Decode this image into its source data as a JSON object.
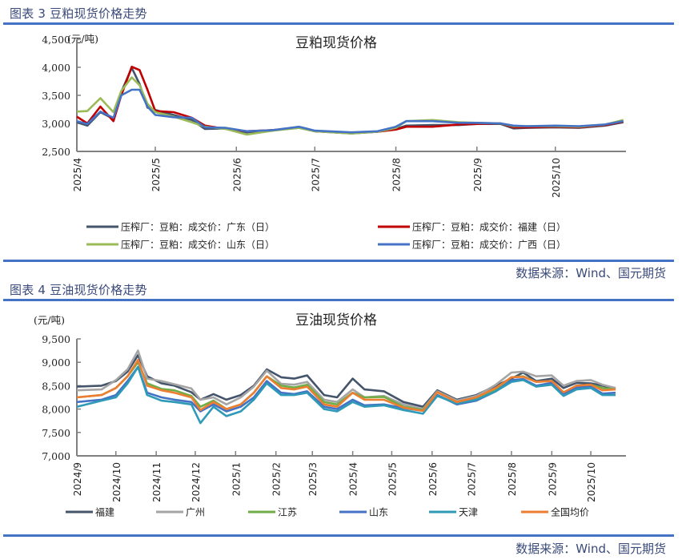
{
  "figure3": {
    "caption": "图表 3 豆粕现货价格走势",
    "source": "数据来源：Wind、国元期货"
  },
  "figure4": {
    "caption": "图表 4 豆油现货价格走势",
    "source": "数据来源：Wind、国元期货"
  },
  "chart_data": [
    {
      "type": "line",
      "title": "豆粕现货价格",
      "ylabel": "(元/吨)",
      "xlabel": "",
      "ylim": [
        2500,
        4500
      ],
      "yticks": [
        "2,500",
        "3,000",
        "3,500",
        "4,000",
        "4,500"
      ],
      "x_tick_labels": [
        "2025/4",
        "2025/5",
        "2025/6",
        "2025/7",
        "2025/8",
        "2025/9",
        "2025/10"
      ],
      "grid": false,
      "legend_position": "bottom",
      "x": [
        "2025-04-01",
        "2025-04-05",
        "2025-04-10",
        "2025-04-15",
        "2025-04-18",
        "2025-04-22",
        "2025-04-25",
        "2025-04-28",
        "2025-05-01",
        "2025-05-08",
        "2025-05-15",
        "2025-05-20",
        "2025-05-28",
        "2025-06-05",
        "2025-06-15",
        "2025-06-25",
        "2025-07-01",
        "2025-07-15",
        "2025-07-25",
        "2025-08-01",
        "2025-08-05",
        "2025-08-15",
        "2025-08-25",
        "2025-09-01",
        "2025-09-10",
        "2025-09-15",
        "2025-09-20",
        "2025-10-01",
        "2025-10-10",
        "2025-10-20",
        "2025-10-27"
      ],
      "series": [
        {
          "name": "压榨厂：豆粕：成交价：广东（日）",
          "color": "#44546a",
          "values": [
            3020,
            2960,
            3200,
            3080,
            3560,
            3990,
            3700,
            3280,
            3240,
            3150,
            3060,
            2900,
            2910,
            2840,
            2880,
            2920,
            2860,
            2820,
            2850,
            2900,
            2960,
            2970,
            2970,
            2990,
            2990,
            2910,
            2920,
            2930,
            2920,
            2960,
            3020
          ]
        },
        {
          "name": "压榨厂：豆粕：成交价：福建（日）",
          "color": "#c00000",
          "values": [
            3120,
            3000,
            3300,
            3040,
            3500,
            4010,
            3950,
            3600,
            3220,
            3200,
            3100,
            2960,
            2900,
            2860,
            2880,
            2930,
            2860,
            2830,
            2850,
            2890,
            2940,
            2940,
            2980,
            2990,
            3000,
            2930,
            2930,
            2940,
            2930,
            2970,
            3030
          ]
        },
        {
          "name": "压榨厂：豆粕：成交价：山东（日）",
          "color": "#9bbb59",
          "values": [
            3210,
            3220,
            3450,
            3200,
            3580,
            3820,
            3680,
            3350,
            3200,
            3120,
            3020,
            2940,
            2900,
            2800,
            2870,
            2920,
            2860,
            2820,
            2850,
            2920,
            3040,
            3060,
            3020,
            3010,
            3000,
            2950,
            2950,
            2950,
            2940,
            2980,
            3060
          ]
        },
        {
          "name": "压榨厂：豆粕：成交价：广西（日）",
          "color": "#4472c4",
          "values": [
            3040,
            2990,
            3210,
            3100,
            3500,
            3600,
            3600,
            3300,
            3150,
            3110,
            3100,
            2930,
            2920,
            2860,
            2880,
            2940,
            2870,
            2840,
            2860,
            2940,
            3040,
            3040,
            3010,
            3010,
            3000,
            2960,
            2950,
            2960,
            2950,
            2980,
            3040
          ]
        }
      ]
    },
    {
      "type": "line",
      "title": "豆油现货价格",
      "ylabel": "(元/吨)",
      "xlabel": "",
      "ylim": [
        7000,
        9500
      ],
      "yticks": [
        "7,000",
        "7,500",
        "8,000",
        "8,500",
        "9,000",
        "9,500"
      ],
      "x_tick_labels": [
        "2024/9",
        "2024/10",
        "2024/11",
        "2024/12",
        "2025/1",
        "2025/2",
        "2025/3",
        "2025/4",
        "2025/5",
        "2025/6",
        "2025/7",
        "2025/8",
        "2025/9",
        "2025/10"
      ],
      "grid": false,
      "legend_position": "bottom",
      "x": [
        "2024-09-01",
        "2024-09-20",
        "2024-10-01",
        "2024-10-10",
        "2024-10-18",
        "2024-10-25",
        "2024-11-05",
        "2024-11-15",
        "2024-11-28",
        "2024-12-05",
        "2024-12-15",
        "2024-12-25",
        "2025-01-05",
        "2025-01-15",
        "2025-01-25",
        "2025-02-05",
        "2025-02-15",
        "2025-02-25",
        "2025-03-10",
        "2025-03-20",
        "2025-04-01",
        "2025-04-10",
        "2025-04-25",
        "2025-05-10",
        "2025-05-25",
        "2025-06-05",
        "2025-06-20",
        "2025-07-05",
        "2025-07-20",
        "2025-08-01",
        "2025-08-10",
        "2025-08-20",
        "2025-09-01",
        "2025-09-10",
        "2025-09-20",
        "2025-10-01",
        "2025-10-10",
        "2025-10-20"
      ],
      "series": [
        {
          "name": "福建",
          "color": "#44546a",
          "values": [
            8480,
            8500,
            8600,
            8800,
            9150,
            8700,
            8550,
            8500,
            8360,
            8200,
            8320,
            8200,
            8300,
            8500,
            8850,
            8680,
            8650,
            8720,
            8300,
            8250,
            8650,
            8420,
            8380,
            8150,
            8050,
            8400,
            8200,
            8300,
            8500,
            8650,
            8780,
            8600,
            8650,
            8450,
            8560,
            8550,
            8500,
            8420
          ]
        },
        {
          "name": "广州",
          "color": "#a5a5a5",
          "values": [
            8400,
            8420,
            8620,
            8850,
            9250,
            8650,
            8600,
            8530,
            8440,
            8200,
            8250,
            8100,
            8250,
            8480,
            8820,
            8540,
            8520,
            8580,
            8200,
            8150,
            8420,
            8250,
            8280,
            8100,
            8000,
            8380,
            8180,
            8280,
            8520,
            8780,
            8800,
            8700,
            8720,
            8500,
            8600,
            8620,
            8520,
            8450
          ]
        },
        {
          "name": "江苏",
          "color": "#70ad47",
          "values": [
            8250,
            8300,
            8450,
            8700,
            9000,
            8550,
            8430,
            8400,
            8280,
            8050,
            8180,
            8000,
            8100,
            8350,
            8700,
            8500,
            8460,
            8520,
            8150,
            8100,
            8350,
            8250,
            8260,
            8050,
            7980,
            8360,
            8150,
            8220,
            8430,
            8680,
            8700,
            8580,
            8600,
            8350,
            8500,
            8520,
            8450,
            8420
          ]
        },
        {
          "name": "山东",
          "color": "#4472c4",
          "values": [
            8150,
            8200,
            8300,
            8600,
            8900,
            8350,
            8250,
            8200,
            8150,
            7950,
            8100,
            7950,
            8050,
            8250,
            8600,
            8350,
            8320,
            8380,
            8050,
            8000,
            8200,
            8080,
            8100,
            8020,
            7960,
            8300,
            8100,
            8180,
            8380,
            8620,
            8640,
            8500,
            8560,
            8330,
            8460,
            8480,
            8330,
            8350
          ]
        },
        {
          "name": "天津",
          "color": "#2e9ab8",
          "values": [
            8050,
            8180,
            8250,
            8550,
            8900,
            8300,
            8180,
            8150,
            8100,
            7700,
            8050,
            7850,
            7950,
            8200,
            8550,
            8300,
            8300,
            8350,
            8000,
            7950,
            8150,
            8050,
            8080,
            7980,
            7900,
            8280,
            8120,
            8200,
            8380,
            8580,
            8620,
            8480,
            8520,
            8280,
            8420,
            8450,
            8300,
            8300
          ]
        },
        {
          "name": "全国均价",
          "color": "#ed7d31",
          "values": [
            8250,
            8300,
            8450,
            8700,
            9050,
            8500,
            8400,
            8350,
            8250,
            7980,
            8150,
            8000,
            8100,
            8350,
            8700,
            8450,
            8420,
            8480,
            8100,
            8050,
            8350,
            8200,
            8200,
            8030,
            7960,
            8360,
            8150,
            8250,
            8450,
            8680,
            8690,
            8580,
            8600,
            8360,
            8500,
            8520,
            8400,
            8420
          ]
        }
      ]
    }
  ]
}
